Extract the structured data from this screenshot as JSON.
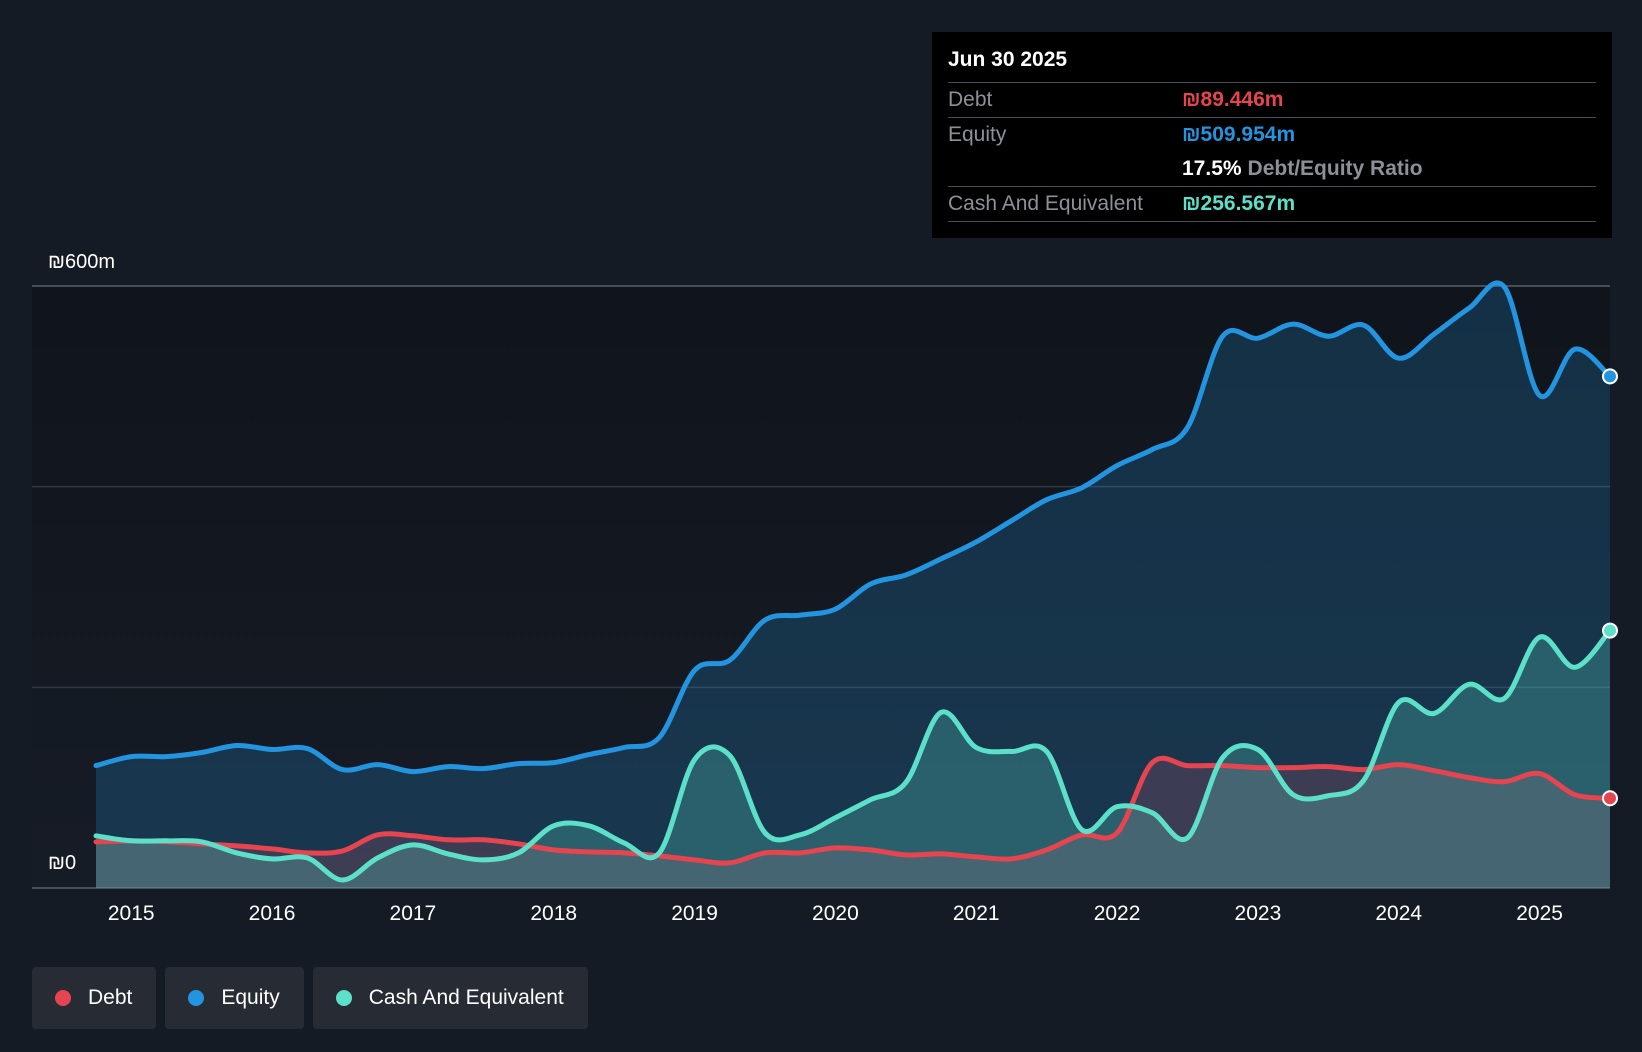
{
  "chart_data": {
    "type": "area",
    "title": "",
    "ylim": [
      0,
      600
    ],
    "y_unit": "₪m",
    "ytick_labels": {
      "top": "₪600m",
      "bottom": "₪0"
    },
    "x_ticks": [
      "2015",
      "2016",
      "2017",
      "2018",
      "2019",
      "2020",
      "2021",
      "2022",
      "2023",
      "2024",
      "2025"
    ],
    "x": [
      2014.75,
      2015.0,
      2015.25,
      2015.5,
      2015.75,
      2016.0,
      2016.25,
      2016.5,
      2016.75,
      2017.0,
      2017.25,
      2017.5,
      2017.75,
      2018.0,
      2018.25,
      2018.5,
      2018.75,
      2019.0,
      2019.25,
      2019.5,
      2019.75,
      2020.0,
      2020.25,
      2020.5,
      2020.75,
      2021.0,
      2021.25,
      2021.5,
      2021.75,
      2022.0,
      2022.25,
      2022.5,
      2022.75,
      2023.0,
      2023.25,
      2023.5,
      2023.75,
      2024.0,
      2024.25,
      2024.5,
      2024.75,
      2025.0,
      2025.25,
      2025.5
    ],
    "series": [
      {
        "name": "Debt",
        "color": "#e64550",
        "values": [
          46,
          47,
          46,
          44,
          42,
          39,
          35,
          37,
          53,
          52,
          48,
          48,
          44,
          38,
          36,
          35,
          32,
          28,
          25,
          35,
          35,
          40,
          38,
          33,
          34,
          31,
          29,
          38,
          53,
          55,
          125,
          122,
          122,
          120,
          120,
          121,
          118,
          123,
          117,
          110,
          106,
          114,
          93,
          89.446
        ]
      },
      {
        "name": "Equity",
        "color": "#2394df",
        "values": [
          122,
          131,
          131,
          135,
          142,
          138,
          139,
          118,
          123,
          116,
          121,
          119,
          124,
          125,
          133,
          140,
          150,
          217,
          227,
          267,
          272,
          278,
          303,
          312,
          328,
          345,
          366,
          387,
          399,
          421,
          437,
          459,
          550,
          548,
          562,
          550,
          561,
          528,
          552,
          578,
          599,
          491,
          537,
          509.954
        ]
      },
      {
        "name": "Cash And Equivalent",
        "color": "#5ce0c9",
        "values": [
          52,
          47,
          47,
          46,
          35,
          29,
          30,
          8,
          30,
          43,
          34,
          28,
          35,
          62,
          62,
          45,
          35,
          128,
          132,
          55,
          53,
          70,
          88,
          105,
          175,
          140,
          136,
          136,
          58,
          81,
          75,
          50,
          130,
          138,
          93,
          92,
          107,
          185,
          174,
          203,
          189,
          250,
          220,
          256.567
        ]
      }
    ]
  },
  "tooltip": {
    "date": "Jun 30 2025",
    "debt_label": "Debt",
    "debt_value": "₪89.446m",
    "equity_label": "Equity",
    "equity_value": "₪509.954m",
    "ratio_value": "17.5%",
    "ratio_label": "Debt/Equity Ratio",
    "cash_label": "Cash And Equivalent",
    "cash_value": "₪256.567m"
  },
  "legend": [
    {
      "label": "Debt",
      "color": "#e64550"
    },
    {
      "label": "Equity",
      "color": "#2394df"
    },
    {
      "label": "Cash And Equivalent",
      "color": "#5ce0c9"
    }
  ]
}
